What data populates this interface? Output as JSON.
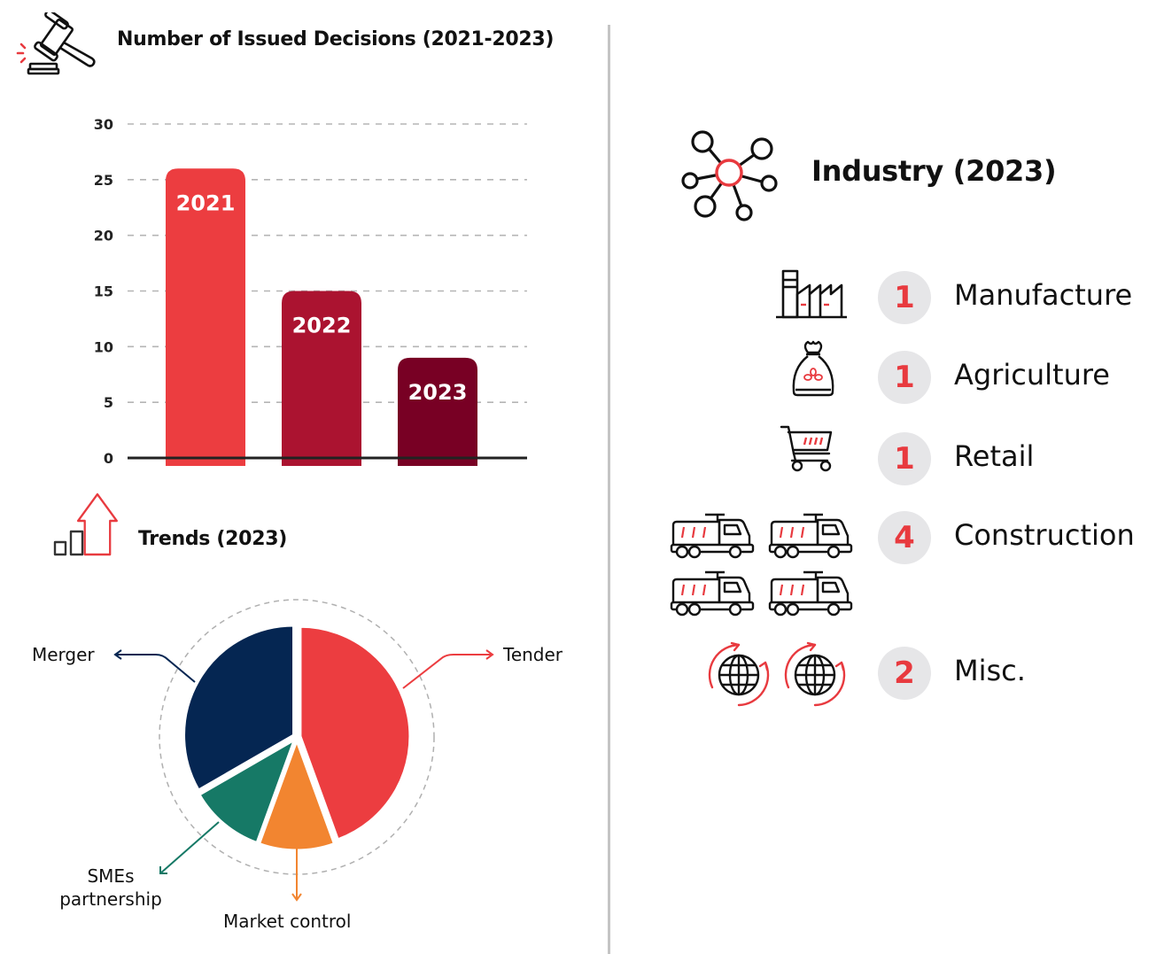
{
  "decisions_section": {
    "title": "Number of Issued Decisions (2021-2023)",
    "icon": "gavel-icon"
  },
  "trends_section": {
    "title": "Trends (2023)",
    "icon": "growth-chart-icon"
  },
  "industry_section": {
    "title": "Industry (2023)",
    "icon": "network-hub-icon",
    "items": [
      {
        "label": "Manufacture",
        "count": "1",
        "icon": "factory-icon",
        "icon_count": 1
      },
      {
        "label": "Agriculture",
        "count": "1",
        "icon": "grain-sack-icon",
        "icon_count": 1
      },
      {
        "label": "Retail",
        "count": "1",
        "icon": "shopping-cart-icon",
        "icon_count": 1
      },
      {
        "label": "Construction",
        "count": "4",
        "icon": "dump-truck-icon",
        "icon_count": 4
      },
      {
        "label": "Misc.",
        "count": "2",
        "icon": "globe-cycle-icon",
        "icon_count": 2
      }
    ]
  },
  "colors": {
    "accent_red": "#e83a3f",
    "bar_2021": "#ec3d40",
    "bar_2022": "#ab1330",
    "bar_2023": "#780024",
    "pie_tender": "#ec3d40",
    "pie_market_control": "#f28530",
    "pie_smes": "#167966",
    "pie_merger": "#052652",
    "badge_bg": "#e6e6e8"
  },
  "chart_data": [
    {
      "type": "bar",
      "title": "Number of Issued Decisions (2021-2023)",
      "categories": [
        "2021",
        "2022",
        "2023"
      ],
      "values": [
        26,
        15,
        9
      ],
      "bar_labels": [
        "2021",
        "2022",
        "2023"
      ],
      "xlabel": "",
      "ylabel": "",
      "ylim": [
        0,
        30
      ],
      "yticks": [
        0,
        5,
        10,
        15,
        20,
        25,
        30
      ],
      "ytick_labels": [
        "0",
        "5",
        "10",
        "15",
        "20",
        "25",
        "30"
      ],
      "grid": true,
      "grid_style": "dashed"
    },
    {
      "type": "pie",
      "title": "Trends (2023)",
      "slices": [
        {
          "label": "Tender",
          "value": 4,
          "percent": 44.4
        },
        {
          "label": "Market control",
          "value": 1,
          "percent": 11.1
        },
        {
          "label": "SMEs partnership",
          "value": 1,
          "percent": 11.1
        },
        {
          "label": "Merger",
          "value": 3,
          "percent": 33.3
        }
      ],
      "label_lines": [
        "Tender",
        "Market control",
        "SMEs\npartnership",
        "Merger"
      ]
    }
  ]
}
